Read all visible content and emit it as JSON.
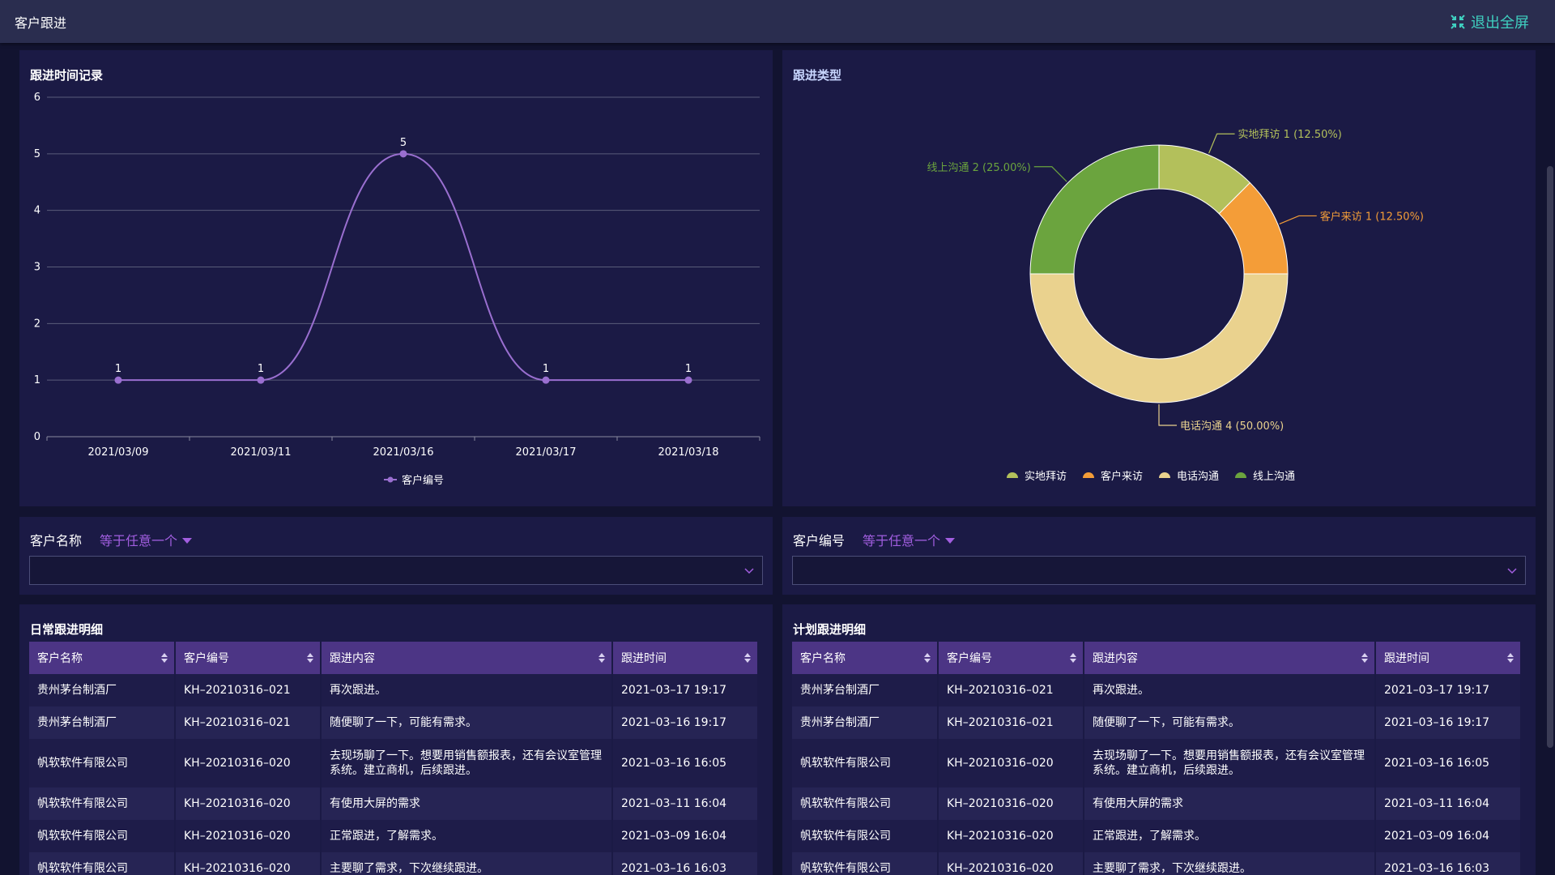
{
  "header": {
    "title": "客户跟进",
    "exit_label": "退出全屏"
  },
  "line_panel": {
    "title": "跟进时间记录"
  },
  "pie_panel": {
    "title": "跟进类型"
  },
  "chart_data": [
    {
      "type": "line",
      "title": "跟进时间记录",
      "categories": [
        "2021/03/09",
        "2021/03/11",
        "2021/03/16",
        "2021/03/17",
        "2021/03/18"
      ],
      "series": [
        {
          "name": "客户编号",
          "values": [
            1,
            1,
            5,
            1,
            1
          ]
        }
      ],
      "ylim": [
        0,
        6
      ],
      "yticks": [
        "0",
        "1",
        "2",
        "3",
        "4",
        "5",
        "6"
      ],
      "grid": true,
      "smooth": true,
      "legend": "bottom",
      "color": "#9a6fd0"
    },
    {
      "type": "pie",
      "title": "跟进类型",
      "donut": true,
      "slices": [
        {
          "name": "实地拜访",
          "value": 1,
          "percent": "12.50%",
          "label": "实地拜访 1 (12.50%)",
          "color": "#b3c05b"
        },
        {
          "name": "客户来访",
          "value": 1,
          "percent": "12.50%",
          "label": "客户来访 1 (12.50%)",
          "color": "#f49d38"
        },
        {
          "name": "电话沟通",
          "value": 4,
          "percent": "50.00%",
          "label": "电话沟通 4 (50.00%)",
          "color": "#ead28e"
        },
        {
          "name": "线上沟通",
          "value": 2,
          "percent": "25.00%",
          "label": "线上沟通 2 (25.00%)",
          "color": "#6ba43e"
        }
      ],
      "legend": "bottom"
    }
  ],
  "filters": {
    "left": {
      "label": "客户名称",
      "operator": "等于任意一个",
      "value": ""
    },
    "right": {
      "label": "客户编号",
      "operator": "等于任意一个",
      "value": ""
    }
  },
  "tables": {
    "daily": {
      "title": "日常跟进明细",
      "columns": [
        "客户名称",
        "客户编号",
        "跟进内容",
        "跟进时间"
      ],
      "rows": [
        [
          "贵州茅台制酒厂",
          "KH–20210316–021",
          "再次跟进。",
          "2021–03–17 19:17"
        ],
        [
          "贵州茅台制酒厂",
          "KH–20210316–021",
          "随便聊了一下，可能有需求。",
          "2021–03–16 19:17"
        ],
        [
          "帆软软件有限公司",
          "KH–20210316–020",
          "去现场聊了一下。想要用销售额报表，还有会议室管理系统。建立商机，后续跟进。",
          "2021–03–16 16:05"
        ],
        [
          "帆软软件有限公司",
          "KH–20210316–020",
          "有使用大屏的需求",
          "2021–03–11 16:04"
        ],
        [
          "帆软软件有限公司",
          "KH–20210316–020",
          "正常跟进，了解需求。",
          "2021–03–09 16:04"
        ],
        [
          "帆软软件有限公司",
          "KH–20210316–020",
          "主要聊了需求，下次继续跟进。",
          "2021–03–16 16:03"
        ]
      ]
    },
    "plan": {
      "title": "计划跟进明细",
      "columns": [
        "客户名称",
        "客户编号",
        "跟进内容",
        "跟进时间"
      ],
      "rows": [
        [
          "贵州茅台制酒厂",
          "KH–20210316–021",
          "再次跟进。",
          "2021–03–17 19:17"
        ],
        [
          "贵州茅台制酒厂",
          "KH–20210316–021",
          "随便聊了一下，可能有需求。",
          "2021–03–16 19:17"
        ],
        [
          "帆软软件有限公司",
          "KH–20210316–020",
          "去现场聊了一下。想要用销售额报表，还有会议室管理系统。建立商机，后续跟进。",
          "2021–03–16 16:05"
        ],
        [
          "帆软软件有限公司",
          "KH–20210316–020",
          "有使用大屏的需求",
          "2021–03–11 16:04"
        ],
        [
          "帆软软件有限公司",
          "KH–20210316–020",
          "正常跟进，了解需求。",
          "2021–03–09 16:04"
        ],
        [
          "帆软软件有限公司",
          "KH–20210316–020",
          "主要聊了需求，下次继续跟进。",
          "2021–03–16 16:03"
        ]
      ]
    }
  },
  "icons": {
    "exit_fullscreen": "compress-icon",
    "dropdown": "chevron-down-icon",
    "sort": "sort-icon"
  },
  "colors": {
    "accent": "#a25ee0",
    "exit": "#3fd0c0",
    "table_header": "#4c3585"
  }
}
